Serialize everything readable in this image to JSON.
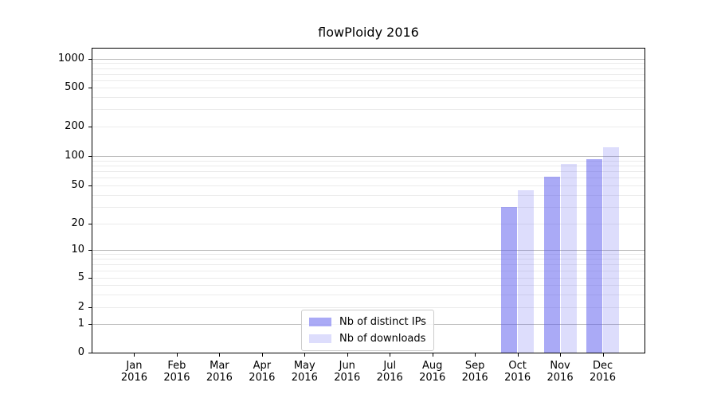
{
  "chart_data": {
    "type": "bar",
    "title": "flowPloidy 2016",
    "x_months": [
      "Jan",
      "Feb",
      "Mar",
      "Apr",
      "May",
      "Jun",
      "Jul",
      "Aug",
      "Sep",
      "Oct",
      "Nov",
      "Dec"
    ],
    "x_year": "2016",
    "y_axis": {
      "scale": "symlog",
      "tick_labels": [
        0,
        1,
        2,
        5,
        10,
        20,
        50,
        100,
        200,
        500,
        1000
      ],
      "major_gridline_values": [
        1,
        10,
        100,
        1000
      ],
      "minor_gridline_values": [
        2,
        3,
        4,
        5,
        6,
        7,
        8,
        9,
        20,
        30,
        40,
        50,
        60,
        70,
        80,
        90,
        200,
        300,
        400,
        500,
        600,
        700,
        800,
        900
      ],
      "ylim": [
        0,
        1000
      ]
    },
    "series": [
      {
        "name": "Nb of distinct IPs",
        "color": "#5555EE80",
        "values": [
          0,
          0,
          0,
          0,
          0,
          0,
          0,
          0,
          0,
          30,
          62,
          92
        ]
      },
      {
        "name": "Nb of downloads",
        "color": "#5555EE33",
        "values": [
          0,
          0,
          0,
          0,
          0,
          0,
          0,
          0,
          0,
          45,
          83,
          123
        ]
      }
    ],
    "grid": {
      "on": true,
      "major_color": "#b8b8b8",
      "minor_color": "#ebebeb"
    },
    "legend_position": "bottom-center-inside",
    "spine_color": "#000000",
    "background_color": "#ffffff"
  }
}
